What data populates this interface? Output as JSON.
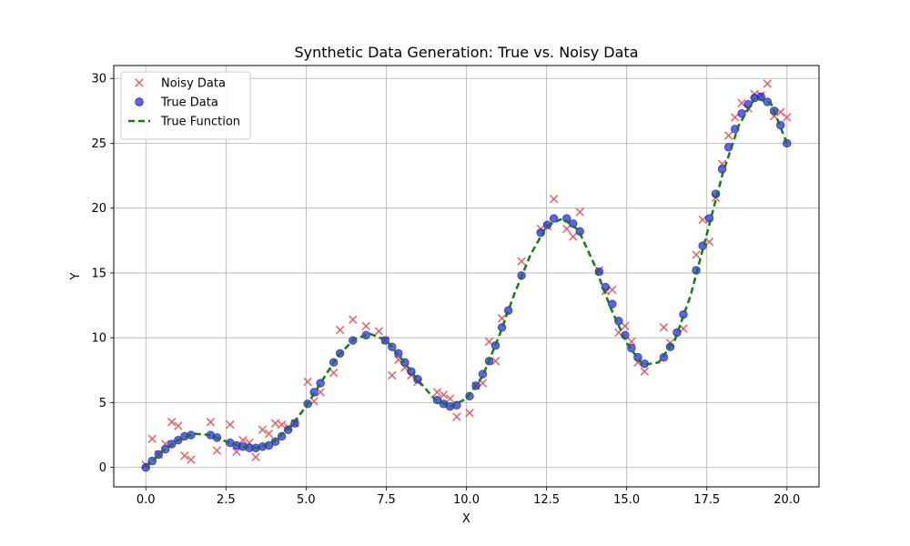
{
  "chart_data": {
    "type": "scatter",
    "title": "Synthetic Data Generation: True vs. Noisy Data",
    "xlabel": "X",
    "ylabel": "Y",
    "xlim": [
      -1.0,
      21.0
    ],
    "ylim": [
      -1.5,
      31.0
    ],
    "xticks": [
      0.0,
      2.5,
      5.0,
      7.5,
      10.0,
      12.5,
      15.0,
      17.5,
      20.0
    ],
    "xtick_labels": [
      "0.0",
      "2.5",
      "5.0",
      "7.5",
      "10.0",
      "12.5",
      "15.0",
      "17.5",
      "20.0"
    ],
    "yticks": [
      0,
      5,
      10,
      15,
      20,
      25,
      30
    ],
    "ytick_labels": [
      "0",
      "5",
      "10",
      "15",
      "20",
      "25",
      "30"
    ],
    "grid": true,
    "legend_position": "top-left",
    "colors": {
      "noisy": "#e8575a",
      "true_data": "#2020e0",
      "true_function": "#0f7f0f"
    },
    "series": [
      {
        "name": "Noisy Data",
        "kind": "scatter-x",
        "x": [
          0.0,
          0.2,
          0.4,
          0.61,
          0.81,
          1.01,
          1.21,
          1.41,
          2.02,
          2.22,
          2.63,
          2.83,
          3.03,
          3.23,
          3.43,
          3.64,
          3.84,
          4.04,
          4.24,
          4.44,
          4.65,
          5.05,
          5.25,
          5.45,
          5.86,
          6.06,
          6.46,
          6.87,
          7.27,
          7.47,
          7.68,
          7.88,
          8.08,
          8.28,
          8.48,
          9.09,
          9.29,
          9.49,
          9.7,
          10.1,
          10.3,
          10.51,
          10.71,
          10.91,
          11.11,
          11.72,
          12.32,
          12.53,
          12.73,
          13.13,
          13.33,
          13.54,
          14.14,
          14.34,
          14.55,
          14.75,
          14.95,
          15.15,
          15.35,
          15.56,
          16.16,
          16.36,
          16.77,
          17.17,
          17.37,
          17.58,
          17.78,
          17.98,
          18.18,
          18.38,
          18.59,
          18.79,
          18.99,
          19.19,
          19.39,
          19.6,
          19.8,
          20.0
        ],
        "y": [
          0.2,
          2.2,
          1.0,
          1.8,
          3.5,
          3.2,
          0.9,
          0.6,
          3.5,
          1.3,
          3.3,
          1.2,
          2.1,
          1.9,
          0.8,
          2.9,
          2.6,
          3.4,
          3.3,
          3.1,
          3.4,
          6.6,
          5.1,
          5.8,
          7.3,
          10.6,
          11.4,
          10.9,
          10.5,
          9.8,
          7.1,
          8.3,
          7.7,
          7.1,
          6.6,
          5.8,
          5.6,
          5.3,
          3.9,
          4.2,
          6.3,
          6.5,
          9.7,
          8.2,
          11.5,
          15.9,
          18.4,
          18.6,
          20.7,
          18.4,
          17.8,
          19.7,
          15.2,
          13.6,
          13.7,
          10.4,
          10.9,
          9.7,
          8.1,
          7.4,
          10.8,
          9.6,
          10.7,
          16.4,
          19.1,
          17.4,
          20.8,
          23.4,
          25.6,
          27.0,
          28.1,
          27.7,
          28.8,
          28.7,
          29.6,
          27.1,
          27.4,
          27.0
        ]
      },
      {
        "name": "True Data",
        "kind": "scatter-dot",
        "x": [
          0.0,
          0.2,
          0.4,
          0.61,
          0.81,
          1.01,
          1.21,
          1.41,
          2.02,
          2.22,
          2.63,
          2.83,
          3.03,
          3.23,
          3.43,
          3.64,
          3.84,
          4.04,
          4.24,
          4.44,
          4.65,
          5.05,
          5.25,
          5.45,
          5.86,
          6.06,
          6.46,
          6.87,
          7.47,
          7.68,
          7.88,
          8.08,
          8.28,
          8.48,
          9.09,
          9.29,
          9.49,
          9.7,
          10.1,
          10.3,
          10.51,
          10.71,
          10.91,
          11.11,
          11.31,
          11.72,
          12.32,
          12.53,
          12.73,
          13.13,
          13.33,
          13.54,
          14.14,
          14.34,
          14.55,
          14.75,
          14.95,
          15.15,
          15.35,
          15.56,
          16.16,
          16.36,
          16.57,
          16.77,
          17.17,
          17.37,
          17.58,
          17.78,
          17.98,
          18.18,
          18.38,
          18.59,
          18.79,
          18.99,
          19.19,
          19.39,
          19.6,
          19.8,
          20.0
        ],
        "y": [
          0.0,
          0.5,
          1.0,
          1.4,
          1.8,
          2.1,
          2.4,
          2.5,
          2.5,
          2.3,
          1.9,
          1.7,
          1.6,
          1.5,
          1.5,
          1.6,
          1.7,
          2.0,
          2.4,
          2.9,
          3.4,
          4.9,
          5.8,
          6.5,
          8.1,
          8.8,
          9.8,
          10.2,
          9.8,
          9.3,
          8.8,
          8.1,
          7.4,
          6.8,
          5.2,
          4.9,
          4.7,
          4.8,
          5.5,
          6.3,
          7.2,
          8.2,
          9.4,
          10.8,
          12.1,
          14.8,
          18.1,
          18.7,
          19.2,
          19.2,
          18.8,
          18.2,
          15.1,
          13.9,
          12.6,
          11.3,
          10.2,
          9.2,
          8.5,
          8.0,
          8.5,
          9.3,
          10.4,
          11.8,
          15.2,
          17.1,
          19.2,
          21.1,
          23.0,
          24.7,
          26.1,
          27.3,
          28.0,
          28.5,
          28.6,
          28.2,
          27.5,
          26.4,
          25.0
        ]
      },
      {
        "name": "True Function",
        "kind": "line-dashed",
        "x": [
          0.0,
          0.5,
          1.0,
          1.5,
          2.0,
          2.5,
          3.0,
          3.5,
          4.0,
          4.5,
          5.0,
          5.5,
          6.0,
          6.5,
          7.0,
          7.5,
          8.0,
          8.5,
          9.0,
          9.5,
          10.0,
          10.5,
          11.0,
          11.5,
          12.0,
          12.5,
          13.0,
          13.5,
          14.0,
          14.5,
          15.0,
          15.5,
          16.0,
          16.5,
          17.0,
          17.5,
          18.0,
          18.5,
          19.0,
          19.5,
          20.0
        ],
        "y": [
          0.0,
          1.2,
          2.1,
          2.6,
          2.5,
          2.0,
          1.6,
          1.5,
          2.0,
          3.1,
          4.7,
          6.7,
          8.6,
          9.9,
          10.3,
          9.8,
          8.3,
          6.7,
          5.3,
          4.7,
          5.3,
          7.0,
          10.0,
          13.4,
          16.4,
          18.6,
          19.2,
          18.3,
          15.6,
          12.3,
          9.6,
          7.9,
          8.1,
          9.8,
          13.3,
          18.0,
          22.7,
          26.4,
          28.5,
          28.1,
          25.0
        ]
      }
    ]
  }
}
